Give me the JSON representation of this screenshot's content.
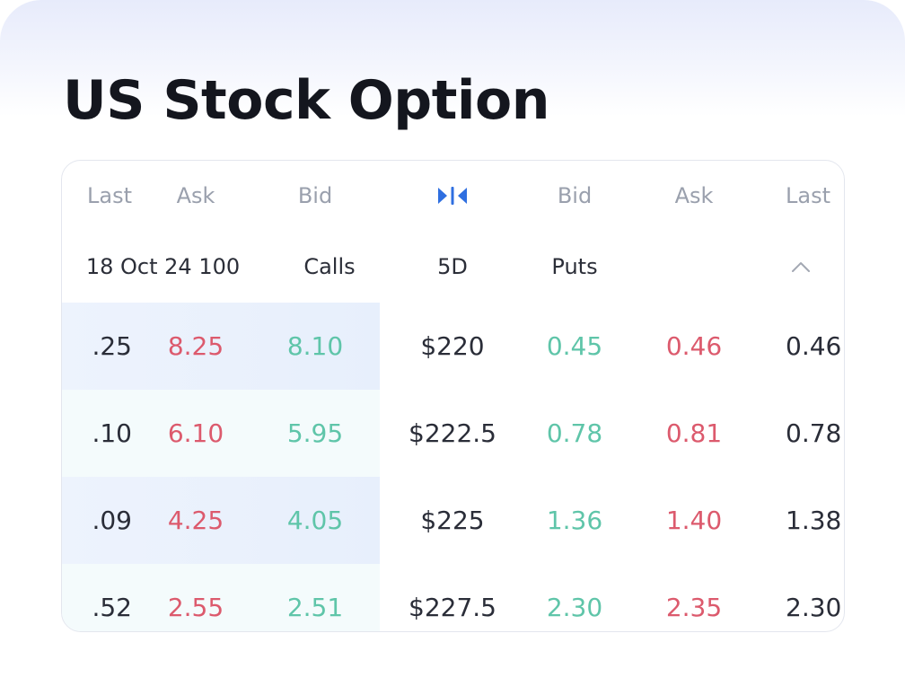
{
  "page": {
    "title": "US Stock Option"
  },
  "table": {
    "columns": {
      "left_last": "Last",
      "left_ask": "Ask",
      "left_bid": "Bid",
      "mid_icon": "collapse-icon",
      "right_bid": "Bid",
      "right_ask": "Ask",
      "right_last": "Last"
    },
    "subheader": {
      "expiry": "18 Oct 24 100",
      "calls": "Calls",
      "period": "5D",
      "puts": "Puts",
      "toggle_icon": "chevron-up-icon"
    },
    "rows": [
      {
        "call_last": ".25",
        "call_ask": "8.25",
        "call_bid": "8.10",
        "strike": "$220",
        "put_bid": "0.45",
        "put_ask": "0.46",
        "put_last": "0.46"
      },
      {
        "call_last": ".10",
        "call_ask": "6.10",
        "call_bid": "5.95",
        "strike": "$222.5",
        "put_bid": "0.78",
        "put_ask": "0.81",
        "put_last": "0.78"
      },
      {
        "call_last": ".09",
        "call_ask": "4.25",
        "call_bid": "4.05",
        "strike": "$225",
        "put_bid": "1.36",
        "put_ask": "1.40",
        "put_last": "1.38"
      },
      {
        "call_last": ".52",
        "call_ask": "2.55",
        "call_bid": "2.51",
        "strike": "$227.5",
        "put_bid": "2.30",
        "put_ask": "2.35",
        "put_last": "2.30"
      }
    ]
  },
  "colors": {
    "positive": "#5fc5a9",
    "negative": "#dc5a6d",
    "accent": "#2f6fe0",
    "title": "#14161e"
  }
}
